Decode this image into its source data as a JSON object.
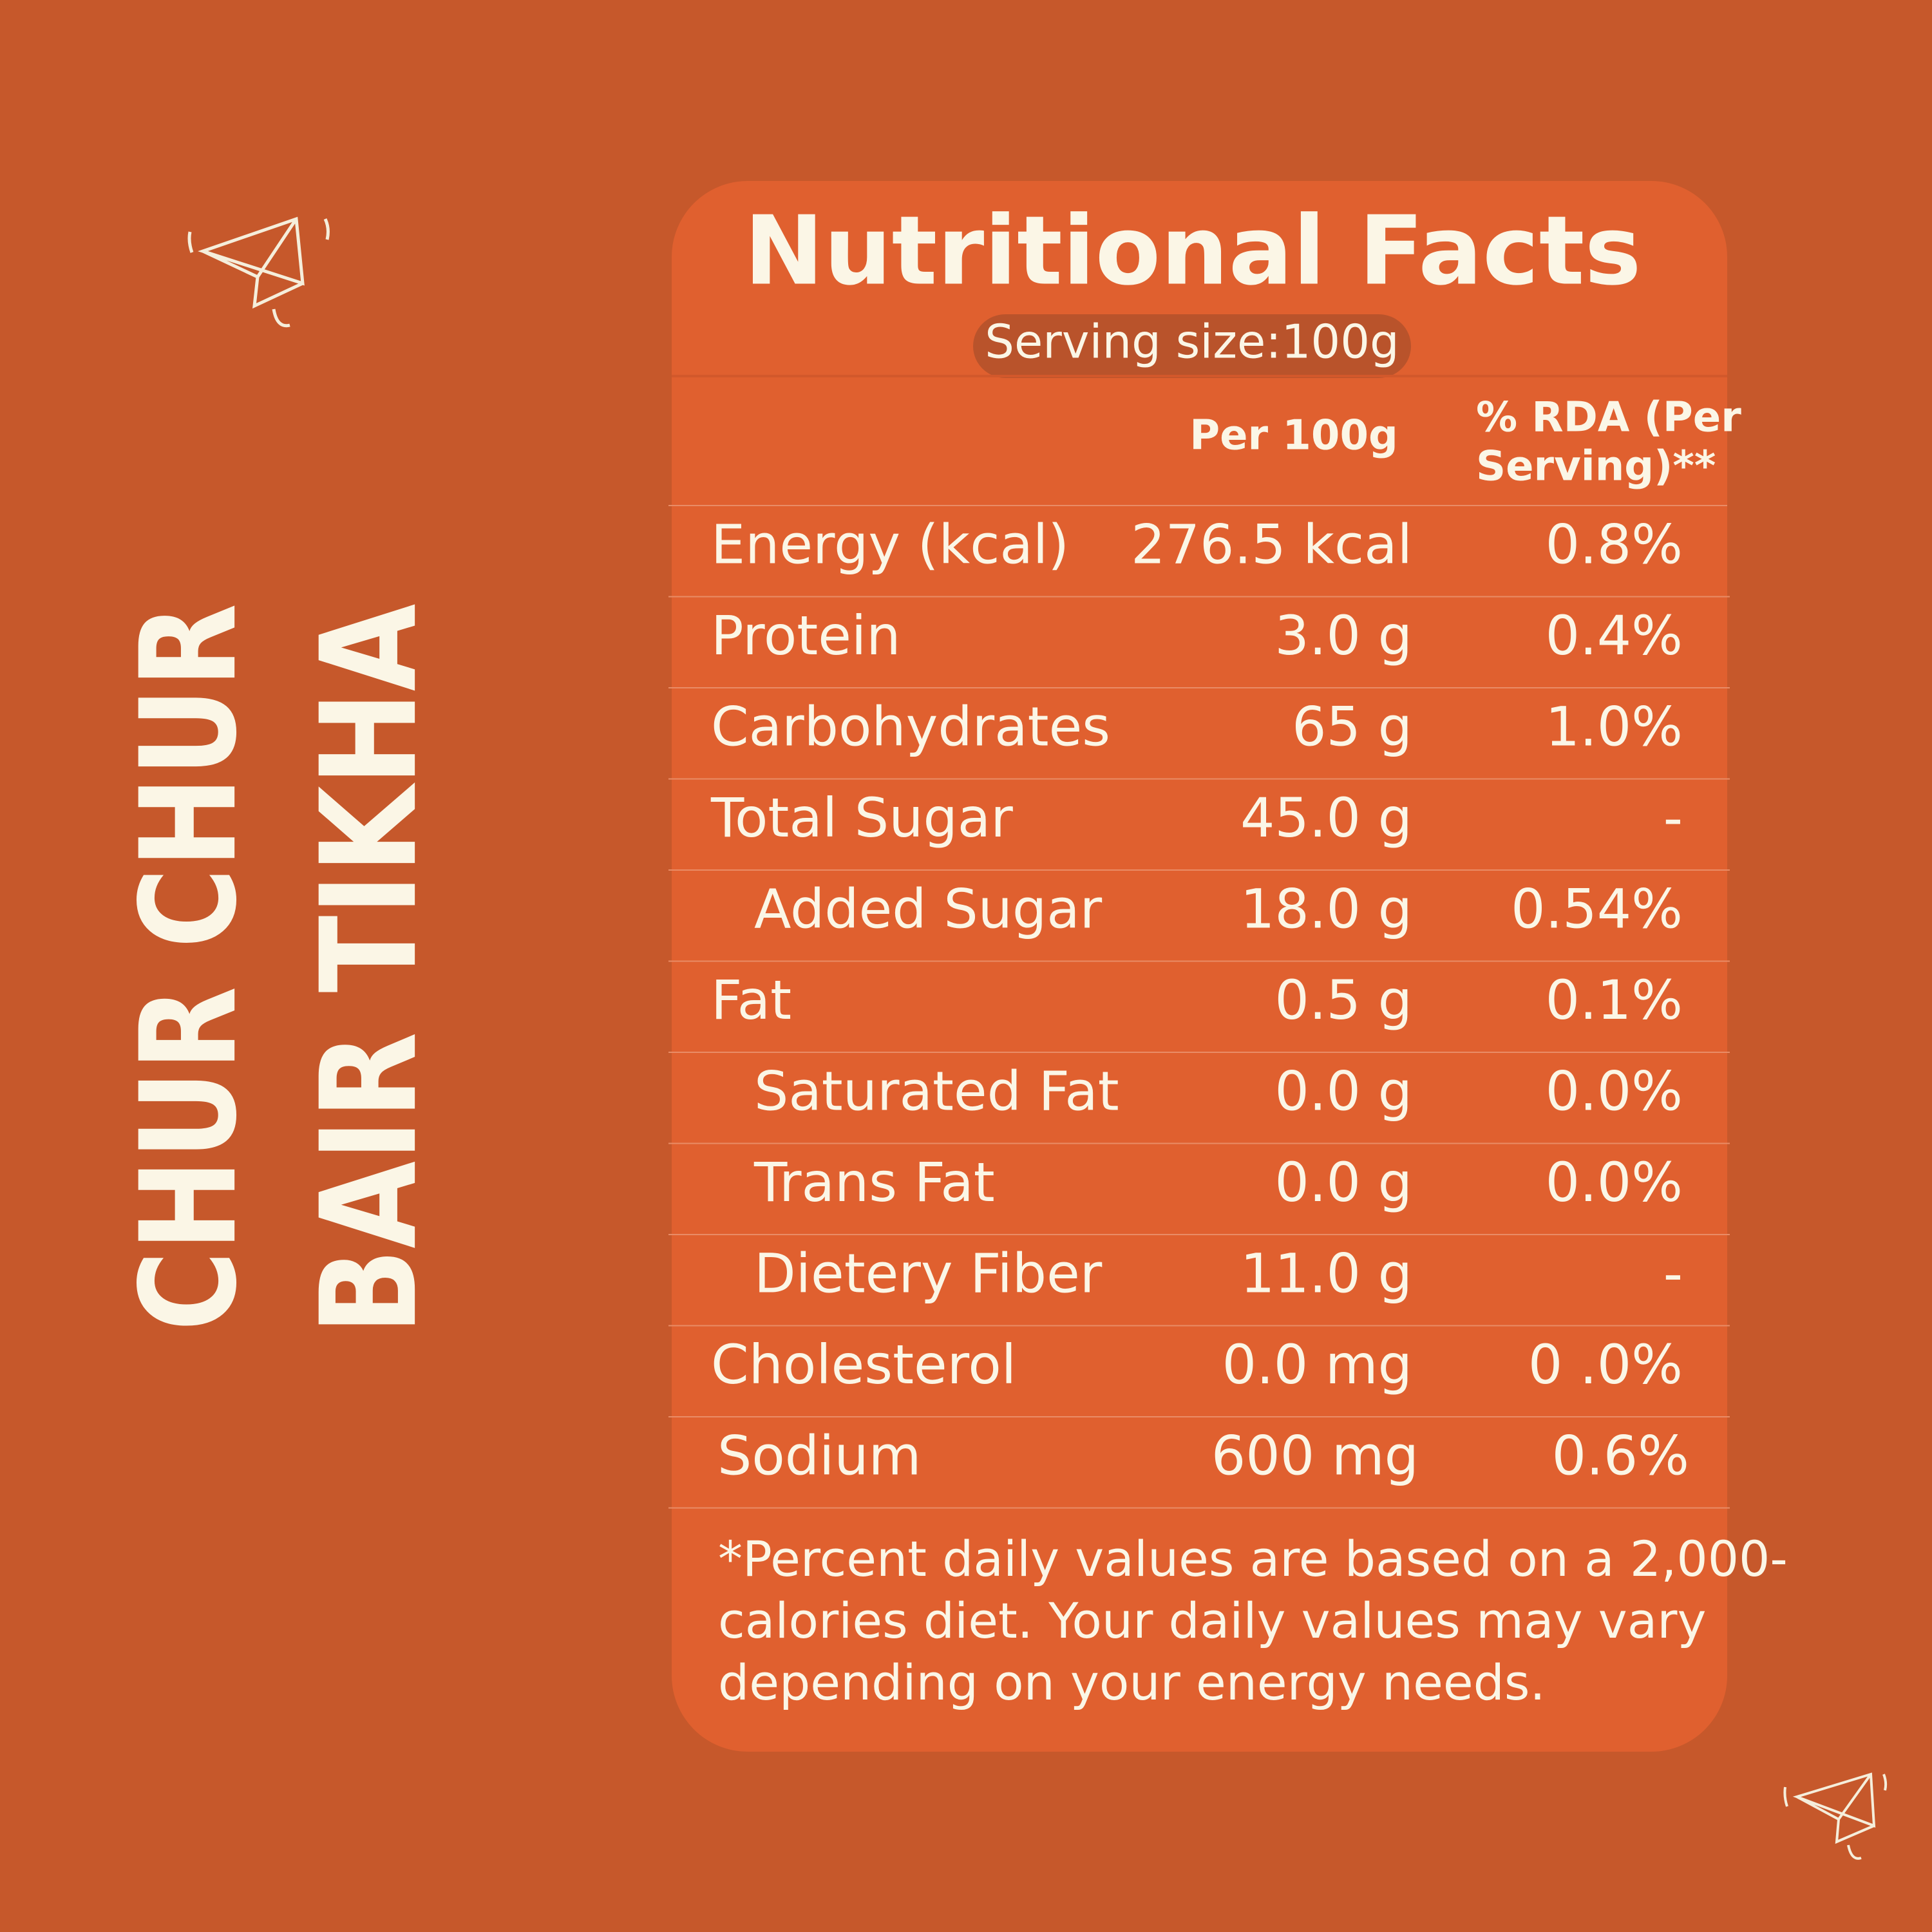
{
  "side_title": {
    "line1": "CHUR CHUR",
    "line2": "BAIR TIKHA"
  },
  "panel": {
    "title": "Nutritional Facts",
    "serving": "Serving size:100g",
    "headers": [
      "Per 100g",
      "% RDA (Per",
      "Serving)**"
    ],
    "table": {
      "rows": [
        [
          "Energy (kcal)",
          "276.5 kcal",
          "0.8%"
        ],
        [
          "Protein",
          "3.0 g",
          "0.4%"
        ],
        [
          "Carbohydrates",
          "65 g",
          "1.0%"
        ],
        [
          "Total Sugar",
          "45.0 g",
          "-"
        ],
        [
          "Added Sugar",
          "18.0 g",
          "0.54%"
        ],
        [
          "Fat",
          "0.5 g",
          "0.1%"
        ],
        [
          "Saturated Fat",
          "0.0 g",
          "0.0%"
        ],
        [
          "Trans Fat",
          "0.0 g",
          "0.0%"
        ],
        [
          "Dietery Fiber",
          "11.0 g",
          "-"
        ],
        [
          "Cholesterol",
          "0.0 mg",
          "0 .0%"
        ],
        [
          "Sodium",
          "600 mg",
          "0.6%"
        ]
      ]
    },
    "footnote": [
      "*Percent daily values are based on a 2,000-",
      "calories diet. Your daily values may vary",
      "depending on your energy needs."
    ]
  }
}
